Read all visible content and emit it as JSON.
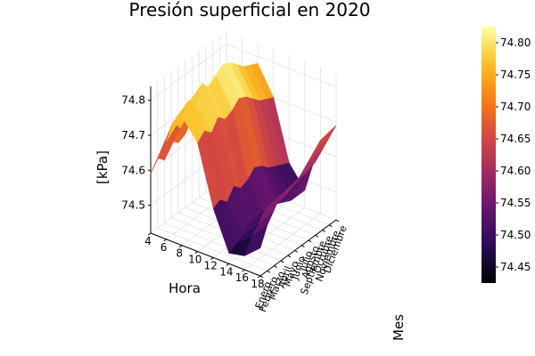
{
  "chart_data": {
    "type": "surface",
    "title": "Presión superficial en 2020",
    "xlabel": "Hora",
    "ylabel": "Mes",
    "zlabel": "[kPa]",
    "x": [
      4,
      6,
      8,
      10,
      12,
      14,
      16,
      18
    ],
    "y": [
      "Enero",
      "Febrero",
      "Marzo",
      "Abril",
      "Mayo",
      "Junio",
      "Julio",
      "Agosto",
      "Septiembre",
      "Octubre",
      "Noviembre",
      "Diciembre"
    ],
    "x_ticks": [
      "4",
      "6",
      "8",
      "10",
      "12",
      "14",
      "16",
      "18"
    ],
    "z_ticks": [
      "74.5",
      "74.6",
      "74.7",
      "74.8"
    ],
    "z_tick_values": [
      74.5,
      74.6,
      74.7,
      74.8
    ],
    "xlim": [
      4,
      18
    ],
    "zlim": [
      74.42,
      74.84
    ],
    "z": [
      [
        74.59,
        74.62,
        74.6,
        74.64,
        74.62,
        74.63,
        74.66,
        74.64,
        74.62,
        74.61,
        74.6,
        74.59
      ],
      [
        74.7,
        74.74,
        74.71,
        74.76,
        74.73,
        74.75,
        74.77,
        74.76,
        74.74,
        74.72,
        74.71,
        74.7
      ],
      [
        74.79,
        74.82,
        74.8,
        74.84,
        74.81,
        74.83,
        74.85,
        74.84,
        74.82,
        74.8,
        74.79,
        74.78
      ],
      [
        74.73,
        74.75,
        74.73,
        74.76,
        74.74,
        74.75,
        74.77,
        74.76,
        74.74,
        74.72,
        74.71,
        74.7
      ],
      [
        74.56,
        74.57,
        74.55,
        74.58,
        74.56,
        74.57,
        74.59,
        74.58,
        74.56,
        74.55,
        74.54,
        74.53
      ],
      [
        74.45,
        74.46,
        74.47,
        74.49,
        74.48,
        74.49,
        74.5,
        74.49,
        74.48,
        74.47,
        74.47,
        74.47
      ],
      [
        74.46,
        74.5,
        74.52,
        74.55,
        74.54,
        74.55,
        74.56,
        74.56,
        74.57,
        74.59,
        74.61,
        74.63
      ],
      [
        74.5,
        74.55,
        74.58,
        74.61,
        74.6,
        74.61,
        74.62,
        74.62,
        74.63,
        74.65,
        74.67,
        74.69
      ]
    ],
    "colorbar": {
      "ticks": [
        "74.45",
        "74.50",
        "74.55",
        "74.60",
        "74.65",
        "74.70",
        "74.75",
        "74.80"
      ],
      "tick_values": [
        74.45,
        74.5,
        74.55,
        74.6,
        74.65,
        74.7,
        74.75,
        74.8
      ],
      "range": [
        74.425,
        74.825
      ],
      "colormap": "inferno"
    },
    "grid": true,
    "legend": "none"
  }
}
